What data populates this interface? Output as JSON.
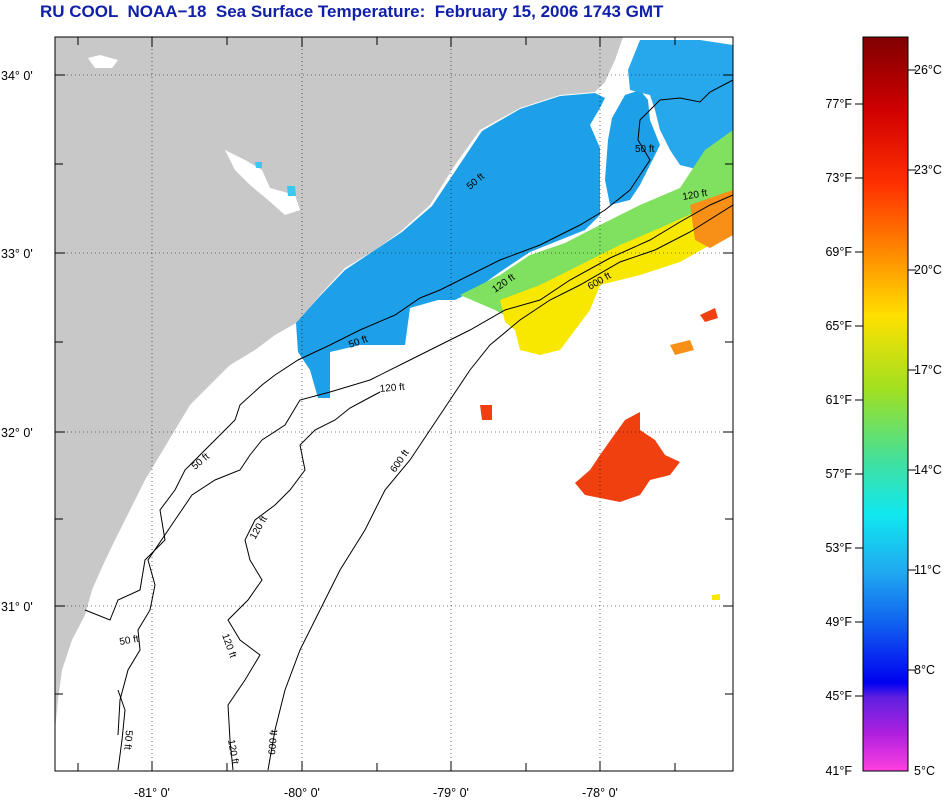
{
  "title": "RU COOL  NOAA−18  Sea Surface Temperature:  February 15, 2006 1743 GMT",
  "map": {
    "lat_labels": [
      "34° 0'",
      "33° 0'",
      "32° 0'",
      "31° 0'"
    ],
    "lon_labels": [
      "-81° 0'",
      "-80° 0'",
      "-79° 0'",
      "-78° 0'"
    ],
    "contour_labels": [
      "50 ft",
      "50 ft",
      "50 ft",
      "50 ft",
      "50 ft",
      "120 ft",
      "120 ft",
      "120 ft",
      "120 ft",
      "120 ft",
      "600 ft",
      "600 ft",
      "600 ft",
      "120 ft",
      "50 ft"
    ]
  },
  "colorbar": {
    "fahrenheit_labels": [
      "77°F",
      "73°F",
      "69°F",
      "65°F",
      "61°F",
      "57°F",
      "53°F",
      "49°F",
      "45°F",
      "41°F"
    ],
    "celsius_labels": [
      "26°C",
      "23°C",
      "20°C",
      "17°C",
      "14°C",
      "11°C",
      "8°C",
      "5°C"
    ]
  },
  "colors": {
    "title": "#1020a8",
    "land": "#c8c8c8",
    "ocean_no_data": "#ffffff",
    "sst_blue": "#1ea0e8",
    "sst_cyan": "#38c8f0",
    "sst_green": "#80e060",
    "sst_yellow": "#f8e800",
    "sst_orange": "#f89018",
    "sst_red": "#f04010"
  }
}
